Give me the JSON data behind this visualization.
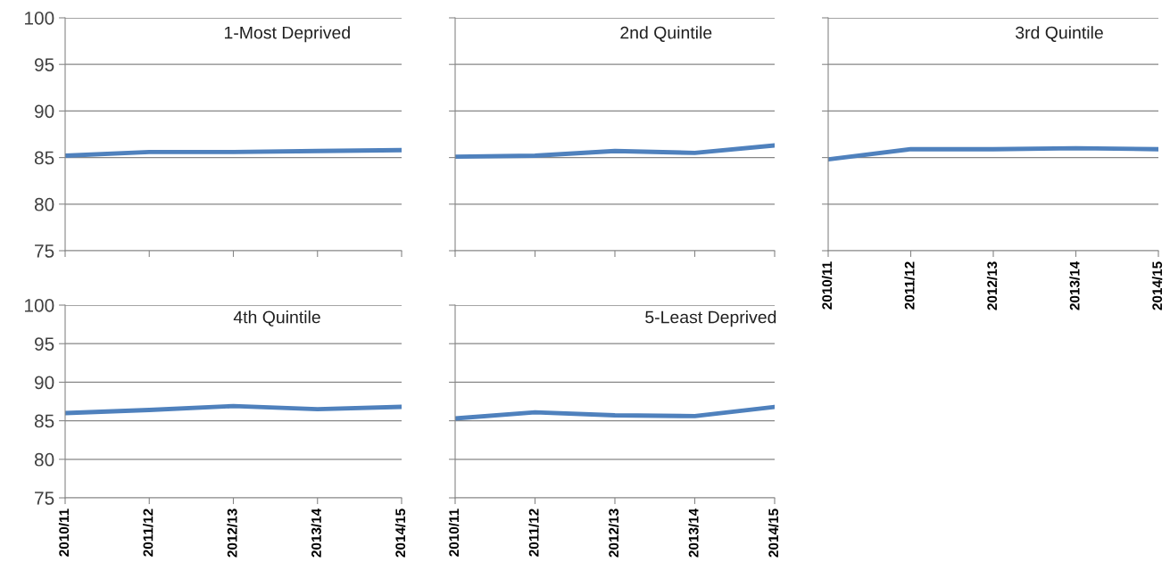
{
  "chart_data": [
    {
      "type": "line",
      "title": "1-Most Deprived",
      "categories": [
        "2010/11",
        "2011/12",
        "2012/13",
        "2013/14",
        "2014/15"
      ],
      "series": [
        {
          "color": "#4f81bd",
          "values": [
            85.2,
            85.6,
            85.6,
            85.7,
            85.8
          ]
        }
      ],
      "ylim": [
        75,
        100
      ],
      "yticks": [
        75,
        80,
        85,
        90,
        95,
        100
      ],
      "grid": "y",
      "tick_labels": "y"
    },
    {
      "type": "line",
      "title": "2nd Quintile",
      "categories": [
        "2010/11",
        "2011/12",
        "2012/13",
        "2013/14",
        "2014/15"
      ],
      "series": [
        {
          "color": "#4f81bd",
          "values": [
            85.1,
            85.2,
            85.7,
            85.5,
            86.3
          ]
        }
      ],
      "ylim": [
        75,
        100
      ],
      "yticks": [
        75,
        80,
        85,
        90,
        95,
        100
      ],
      "grid": "y",
      "tick_labels": false
    },
    {
      "type": "line",
      "title": "3rd Quintile",
      "categories": [
        "2010/11",
        "2011/12",
        "2012/13",
        "2013/14",
        "2014/15"
      ],
      "series": [
        {
          "color": "#4f81bd",
          "values": [
            84.8,
            85.9,
            85.9,
            86.0,
            85.9
          ]
        }
      ],
      "ylim": [
        75,
        100
      ],
      "yticks": [
        75,
        80,
        85,
        90,
        95,
        100
      ],
      "grid": "y",
      "tick_labels": "x"
    },
    {
      "type": "line",
      "title": "4th Quintile",
      "categories": [
        "2010/11",
        "2011/12",
        "2012/13",
        "2013/14",
        "2014/15"
      ],
      "series": [
        {
          "color": "#4f81bd",
          "values": [
            86.0,
            86.4,
            86.9,
            86.5,
            86.8
          ]
        }
      ],
      "ylim": [
        75,
        100
      ],
      "yticks": [
        75,
        80,
        85,
        90,
        95,
        100
      ],
      "grid": "y"
    },
    {
      "type": "line",
      "title": "5-Least Deprived",
      "categories": [
        "2010/11",
        "2011/12",
        "2012/13",
        "2013/14",
        "2014/15"
      ],
      "series": [
        {
          "color": "#4f81bd",
          "values": [
            85.3,
            86.1,
            85.7,
            85.6,
            86.8
          ]
        }
      ],
      "ylim": [
        75,
        100
      ],
      "yticks": [
        75,
        80,
        85,
        90,
        95,
        100
      ],
      "grid": "y",
      "tick_labels": "x"
    }
  ]
}
